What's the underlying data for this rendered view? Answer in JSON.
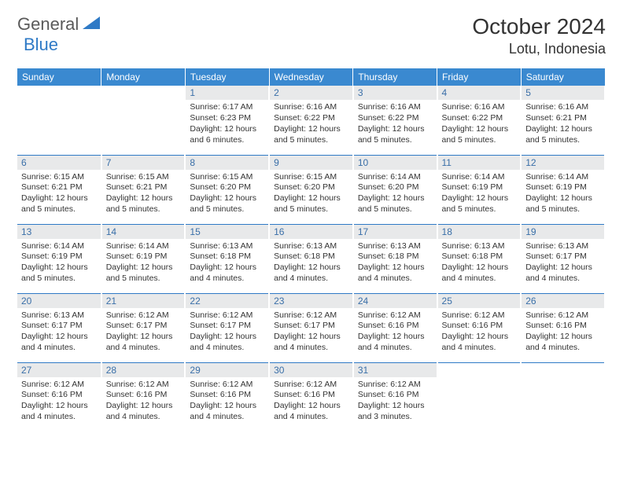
{
  "logo": {
    "word1": "General",
    "word2": "Blue",
    "triangle_color": "#2f7ac6"
  },
  "title": "October 2024",
  "location": "Lotu, Indonesia",
  "colors": {
    "header_bg": "#3a89d0",
    "header_text": "#ffffff",
    "daynum_bg": "#e8e9ea",
    "daynum_text": "#3a6fa8",
    "rule": "#2f7ac6",
    "body_text": "#333333"
  },
  "day_headers": [
    "Sunday",
    "Monday",
    "Tuesday",
    "Wednesday",
    "Thursday",
    "Friday",
    "Saturday"
  ],
  "weeks": [
    [
      null,
      null,
      {
        "n": "1",
        "sunrise": "6:17 AM",
        "sunset": "6:23 PM",
        "daylight": "12 hours and 6 minutes."
      },
      {
        "n": "2",
        "sunrise": "6:16 AM",
        "sunset": "6:22 PM",
        "daylight": "12 hours and 5 minutes."
      },
      {
        "n": "3",
        "sunrise": "6:16 AM",
        "sunset": "6:22 PM",
        "daylight": "12 hours and 5 minutes."
      },
      {
        "n": "4",
        "sunrise": "6:16 AM",
        "sunset": "6:22 PM",
        "daylight": "12 hours and 5 minutes."
      },
      {
        "n": "5",
        "sunrise": "6:16 AM",
        "sunset": "6:21 PM",
        "daylight": "12 hours and 5 minutes."
      }
    ],
    [
      {
        "n": "6",
        "sunrise": "6:15 AM",
        "sunset": "6:21 PM",
        "daylight": "12 hours and 5 minutes."
      },
      {
        "n": "7",
        "sunrise": "6:15 AM",
        "sunset": "6:21 PM",
        "daylight": "12 hours and 5 minutes."
      },
      {
        "n": "8",
        "sunrise": "6:15 AM",
        "sunset": "6:20 PM",
        "daylight": "12 hours and 5 minutes."
      },
      {
        "n": "9",
        "sunrise": "6:15 AM",
        "sunset": "6:20 PM",
        "daylight": "12 hours and 5 minutes."
      },
      {
        "n": "10",
        "sunrise": "6:14 AM",
        "sunset": "6:20 PM",
        "daylight": "12 hours and 5 minutes."
      },
      {
        "n": "11",
        "sunrise": "6:14 AM",
        "sunset": "6:19 PM",
        "daylight": "12 hours and 5 minutes."
      },
      {
        "n": "12",
        "sunrise": "6:14 AM",
        "sunset": "6:19 PM",
        "daylight": "12 hours and 5 minutes."
      }
    ],
    [
      {
        "n": "13",
        "sunrise": "6:14 AM",
        "sunset": "6:19 PM",
        "daylight": "12 hours and 5 minutes."
      },
      {
        "n": "14",
        "sunrise": "6:14 AM",
        "sunset": "6:19 PM",
        "daylight": "12 hours and 5 minutes."
      },
      {
        "n": "15",
        "sunrise": "6:13 AM",
        "sunset": "6:18 PM",
        "daylight": "12 hours and 4 minutes."
      },
      {
        "n": "16",
        "sunrise": "6:13 AM",
        "sunset": "6:18 PM",
        "daylight": "12 hours and 4 minutes."
      },
      {
        "n": "17",
        "sunrise": "6:13 AM",
        "sunset": "6:18 PM",
        "daylight": "12 hours and 4 minutes."
      },
      {
        "n": "18",
        "sunrise": "6:13 AM",
        "sunset": "6:18 PM",
        "daylight": "12 hours and 4 minutes."
      },
      {
        "n": "19",
        "sunrise": "6:13 AM",
        "sunset": "6:17 PM",
        "daylight": "12 hours and 4 minutes."
      }
    ],
    [
      {
        "n": "20",
        "sunrise": "6:13 AM",
        "sunset": "6:17 PM",
        "daylight": "12 hours and 4 minutes."
      },
      {
        "n": "21",
        "sunrise": "6:12 AM",
        "sunset": "6:17 PM",
        "daylight": "12 hours and 4 minutes."
      },
      {
        "n": "22",
        "sunrise": "6:12 AM",
        "sunset": "6:17 PM",
        "daylight": "12 hours and 4 minutes."
      },
      {
        "n": "23",
        "sunrise": "6:12 AM",
        "sunset": "6:17 PM",
        "daylight": "12 hours and 4 minutes."
      },
      {
        "n": "24",
        "sunrise": "6:12 AM",
        "sunset": "6:16 PM",
        "daylight": "12 hours and 4 minutes."
      },
      {
        "n": "25",
        "sunrise": "6:12 AM",
        "sunset": "6:16 PM",
        "daylight": "12 hours and 4 minutes."
      },
      {
        "n": "26",
        "sunrise": "6:12 AM",
        "sunset": "6:16 PM",
        "daylight": "12 hours and 4 minutes."
      }
    ],
    [
      {
        "n": "27",
        "sunrise": "6:12 AM",
        "sunset": "6:16 PM",
        "daylight": "12 hours and 4 minutes."
      },
      {
        "n": "28",
        "sunrise": "6:12 AM",
        "sunset": "6:16 PM",
        "daylight": "12 hours and 4 minutes."
      },
      {
        "n": "29",
        "sunrise": "6:12 AM",
        "sunset": "6:16 PM",
        "daylight": "12 hours and 4 minutes."
      },
      {
        "n": "30",
        "sunrise": "6:12 AM",
        "sunset": "6:16 PM",
        "daylight": "12 hours and 4 minutes."
      },
      {
        "n": "31",
        "sunrise": "6:12 AM",
        "sunset": "6:16 PM",
        "daylight": "12 hours and 3 minutes."
      },
      null,
      null
    ]
  ],
  "labels": {
    "sunrise": "Sunrise: ",
    "sunset": "Sunset: ",
    "daylight": "Daylight: "
  }
}
